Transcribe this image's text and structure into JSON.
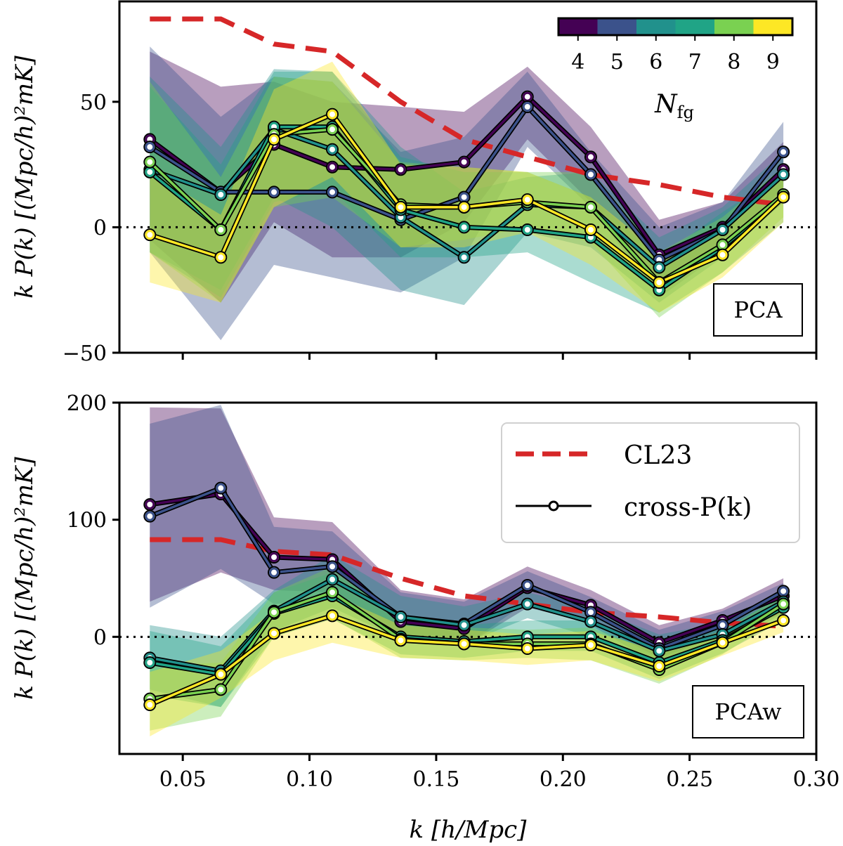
{
  "chart_data": [
    {
      "type": "line",
      "method_label": "PCA",
      "ylabel": "k P(k) [(Mpc/h)²mK]",
      "ylim": [
        -50,
        90
      ],
      "yticks": [
        -50,
        0,
        50
      ],
      "ytick_labels": [
        "−50",
        "0",
        "50"
      ],
      "xlim": [
        0.025,
        0.3
      ],
      "zero_line": true,
      "colorbar": {
        "label": "N_fg",
        "label_display": "Nfg",
        "ticks": [
          "4",
          "5",
          "6",
          "7",
          "8",
          "9"
        ],
        "colors": [
          "#440154",
          "#3b528b",
          "#21918c",
          "#20a486",
          "#7ad151",
          "#fde725"
        ]
      },
      "x": [
        0.037,
        0.065,
        0.086,
        0.109,
        0.136,
        0.161,
        0.186,
        0.211,
        0.238,
        0.263,
        0.287
      ],
      "reference": {
        "name": "CL23",
        "color": "#d62728",
        "values": [
          83,
          83,
          73,
          70,
          50,
          35,
          28,
          21,
          17,
          12,
          9
        ]
      },
      "series": [
        {
          "name": "N_fg = 4",
          "color": "#440154",
          "values": [
            35,
            14,
            33,
            24,
            23,
            26,
            52,
            28,
            -11,
            0,
            23
          ],
          "upper": [
            70,
            56,
            58,
            50,
            48,
            46,
            64,
            40,
            3,
            10,
            34
          ],
          "lower": [
            -5,
            -30,
            2,
            -12,
            -12,
            2,
            35,
            10,
            -25,
            -10,
            10
          ]
        },
        {
          "name": "N_fg = 5",
          "color": "#3b528b",
          "values": [
            32,
            14,
            14,
            14,
            3,
            12,
            48,
            21,
            -13,
            -1,
            30
          ],
          "upper": [
            72,
            44,
            60,
            58,
            30,
            36,
            62,
            30,
            0,
            10,
            42
          ],
          "lower": [
            -10,
            -45,
            -15,
            -20,
            -26,
            -12,
            32,
            8,
            -28,
            -10,
            16
          ]
        },
        {
          "name": "N_fg = 6",
          "color": "#21918c",
          "values": [
            23,
            13,
            39,
            31,
            4,
            -12,
            9,
            8,
            -16,
            -1,
            21
          ],
          "upper": [
            60,
            32,
            63,
            62,
            32,
            14,
            20,
            22,
            -4,
            8,
            30
          ],
          "lower": [
            -10,
            -25,
            12,
            0,
            -25,
            -31,
            -2,
            -8,
            -30,
            -12,
            10
          ]
        },
        {
          "name": "N_fg = 7",
          "color": "#20a486",
          "values": [
            22,
            -1,
            40,
            40,
            7,
            0,
            -1,
            -4,
            -25,
            -8,
            12
          ],
          "upper": [
            56,
            25,
            62,
            62,
            28,
            22,
            22,
            12,
            -12,
            6,
            22
          ],
          "lower": [
            -10,
            -28,
            10,
            15,
            -12,
            -12,
            -10,
            -22,
            -34,
            -18,
            2
          ]
        },
        {
          "name": "N_fg = 8",
          "color": "#7ad151",
          "values": [
            26,
            -1,
            37,
            39,
            9,
            8,
            10,
            8,
            -22,
            -7,
            13
          ],
          "upper": [
            58,
            20,
            60,
            58,
            26,
            24,
            22,
            22,
            -10,
            4,
            24
          ],
          "lower": [
            -10,
            -30,
            8,
            12,
            -8,
            -5,
            0,
            -6,
            -36,
            -18,
            4
          ]
        },
        {
          "name": "N_fg = 9",
          "color": "#fde725",
          "values": [
            -3,
            -12,
            35,
            45,
            8,
            8,
            11,
            -1,
            -22,
            -11,
            12
          ],
          "upper": [
            22,
            5,
            55,
            66,
            25,
            24,
            22,
            12,
            -10,
            0,
            22
          ],
          "lower": [
            -22,
            -30,
            8,
            20,
            -8,
            -8,
            -2,
            -15,
            -34,
            -20,
            2
          ]
        }
      ]
    },
    {
      "type": "line",
      "method_label": "PCAw",
      "ylabel": "k P(k) [(Mpc/h)²mK]",
      "xlabel": "k [h/Mpc]",
      "ylim": [
        -100,
        200
      ],
      "yticks": [
        0,
        100,
        200
      ],
      "ytick_labels": [
        "0",
        "100",
        "200"
      ],
      "xlim": [
        0.025,
        0.3
      ],
      "xticks": [
        0.05,
        0.1,
        0.15,
        0.2,
        0.25,
        0.3
      ],
      "xtick_labels": [
        "0.05",
        "0.10",
        "0.15",
        "0.20",
        "0.25",
        "0.30"
      ],
      "zero_line": true,
      "legend": {
        "position": "upper-right",
        "entries": [
          {
            "label": "CL23",
            "style": "dashed-red"
          },
          {
            "label": "cross-P(k)",
            "style": "line-with-circle"
          }
        ]
      },
      "x": [
        0.037,
        0.065,
        0.086,
        0.109,
        0.136,
        0.161,
        0.186,
        0.211,
        0.238,
        0.263,
        0.287
      ],
      "reference": {
        "name": "CL23",
        "color": "#d62728",
        "values": [
          83,
          83,
          73,
          70,
          50,
          35,
          28,
          21,
          17,
          12,
          9
        ]
      },
      "series": [
        {
          "name": "N_fg = 4",
          "color": "#440154",
          "values": [
            113,
            122,
            68,
            66,
            13,
            7,
            42,
            27,
            -5,
            14,
            35
          ],
          "upper": [
            196,
            195,
            102,
            98,
            40,
            32,
            60,
            40,
            10,
            24,
            50
          ],
          "lower": [
            30,
            55,
            40,
            38,
            -5,
            -8,
            25,
            12,
            -18,
            2,
            20
          ]
        },
        {
          "name": "N_fg = 5",
          "color": "#3b528b",
          "values": [
            103,
            127,
            55,
            60,
            17,
            11,
            44,
            21,
            -10,
            10,
            39
          ],
          "upper": [
            182,
            198,
            94,
            90,
            38,
            30,
            56,
            34,
            6,
            22,
            46
          ],
          "lower": [
            25,
            58,
            28,
            32,
            -2,
            -8,
            30,
            10,
            -24,
            0,
            24
          ]
        },
        {
          "name": "N_fg = 6",
          "color": "#21918c",
          "values": [
            -18,
            -29,
            22,
            49,
            17,
            10,
            28,
            13,
            -12,
            2,
            30
          ],
          "upper": [
            10,
            0,
            40,
            70,
            35,
            26,
            38,
            25,
            2,
            12,
            38
          ],
          "lower": [
            -45,
            -60,
            5,
            25,
            -2,
            -6,
            16,
            0,
            -26,
            -8,
            20
          ]
        },
        {
          "name": "N_fg = 7",
          "color": "#20a486",
          "values": [
            -22,
            -32,
            20,
            35,
            0,
            -4,
            0,
            0,
            -22,
            -3,
            25
          ],
          "upper": [
            5,
            -8,
            38,
            55,
            18,
            10,
            14,
            14,
            -8,
            8,
            34
          ],
          "lower": [
            -50,
            -60,
            0,
            15,
            -15,
            -18,
            -12,
            -12,
            -36,
            -14,
            14
          ]
        },
        {
          "name": "N_fg = 8",
          "color": "#7ad151",
          "values": [
            -53,
            -45,
            21,
            38,
            -2,
            -6,
            -6,
            -6,
            -28,
            -5,
            28
          ],
          "upper": [
            -25,
            -22,
            38,
            60,
            15,
            8,
            6,
            8,
            -14,
            5,
            36
          ],
          "lower": [
            -80,
            -68,
            0,
            16,
            -18,
            -20,
            -18,
            -20,
            -40,
            -15,
            18
          ]
        },
        {
          "name": "N_fg = 9",
          "color": "#fde725",
          "values": [
            -58,
            -32,
            3,
            18,
            -3,
            -6,
            -10,
            -7,
            -25,
            -5,
            14
          ],
          "upper": [
            -30,
            -12,
            22,
            36,
            10,
            6,
            2,
            5,
            -12,
            5,
            24
          ],
          "lower": [
            -85,
            -52,
            -20,
            -5,
            -18,
            -20,
            -24,
            -20,
            -38,
            -16,
            4
          ]
        }
      ]
    }
  ]
}
